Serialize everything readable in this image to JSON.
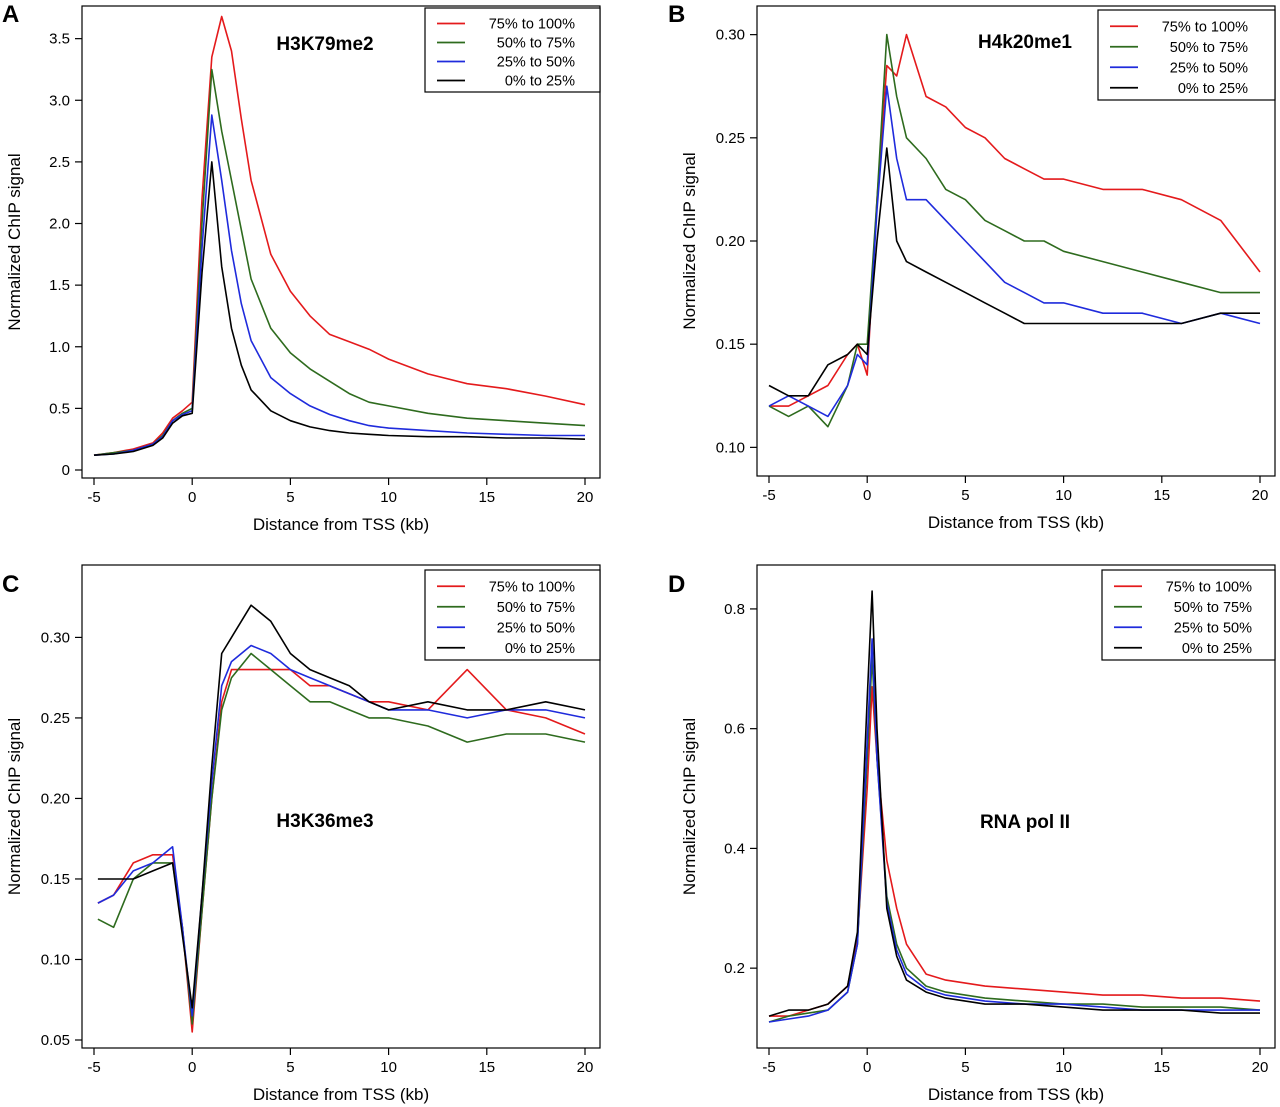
{
  "figure": {
    "description_free": true
  },
  "chart_data": [
    {
      "panel_label": "A",
      "type": "line",
      "title": "H3K79me2",
      "xlabel": "Distance from TSS (kb)",
      "ylabel": "Normalized ChIP signal",
      "xlim": [
        -5,
        20
      ],
      "ylim": [
        0,
        3.7
      ],
      "xticks": [
        -5,
        0,
        5,
        10,
        15,
        20
      ],
      "xtick_labels": [
        "-5",
        "0",
        "5",
        "10",
        "15",
        "20"
      ],
      "yticks": [
        0,
        0.5,
        1,
        1.5,
        2,
        2.5,
        3,
        3.5
      ],
      "ytick_labels": [
        "0",
        "0.5",
        "1.0",
        "1.5",
        "2.0",
        "2.5",
        "3.0",
        "3.5"
      ],
      "legend_position": "top-right",
      "legend": [
        "75% to 100%",
        "50% to 75%",
        "25% to 50%",
        "0% to 25%"
      ],
      "colors": [
        "#e41a1c",
        "#2e6b1e",
        "#1f2bdc",
        "#000000"
      ],
      "series_x": [
        -5,
        -4,
        -3,
        -2,
        -1.5,
        -1,
        -0.5,
        0,
        0.5,
        1,
        1.5,
        2,
        2.5,
        3,
        4,
        5,
        6,
        7,
        8,
        9,
        10,
        12,
        14,
        16,
        18,
        20
      ],
      "series": [
        {
          "name": "75% to 100%",
          "values": [
            0.12,
            0.14,
            0.17,
            0.22,
            0.3,
            0.42,
            0.48,
            0.55,
            2.2,
            3.35,
            3.68,
            3.4,
            2.85,
            2.35,
            1.75,
            1.45,
            1.25,
            1.1,
            1.04,
            0.98,
            0.9,
            0.78,
            0.7,
            0.66,
            0.6,
            0.53
          ]
        },
        {
          "name": "50% to 75%",
          "values": [
            0.12,
            0.14,
            0.16,
            0.21,
            0.28,
            0.4,
            0.46,
            0.5,
            2.0,
            3.25,
            2.75,
            2.35,
            1.95,
            1.55,
            1.15,
            0.95,
            0.82,
            0.72,
            0.62,
            0.55,
            0.52,
            0.46,
            0.42,
            0.4,
            0.38,
            0.36
          ]
        },
        {
          "name": "25% to 50%",
          "values": [
            0.12,
            0.13,
            0.16,
            0.21,
            0.27,
            0.4,
            0.45,
            0.48,
            1.8,
            2.88,
            2.35,
            1.78,
            1.35,
            1.05,
            0.75,
            0.62,
            0.52,
            0.45,
            0.4,
            0.36,
            0.34,
            0.32,
            0.3,
            0.29,
            0.28,
            0.28
          ]
        },
        {
          "name": "0% to 25%",
          "values": [
            0.12,
            0.13,
            0.15,
            0.2,
            0.26,
            0.38,
            0.44,
            0.46,
            1.6,
            2.5,
            1.65,
            1.15,
            0.85,
            0.65,
            0.48,
            0.4,
            0.35,
            0.32,
            0.3,
            0.29,
            0.28,
            0.27,
            0.27,
            0.26,
            0.26,
            0.25
          ]
        }
      ]
    },
    {
      "panel_label": "B",
      "type": "line",
      "title": "H4k20me1",
      "xlabel": "Distance from TSS (kb)",
      "ylabel": "Normalized ChIP signal",
      "xlim": [
        -5,
        20
      ],
      "ylim": [
        0.09,
        0.31
      ],
      "xticks": [
        -5,
        0,
        5,
        10,
        15,
        20
      ],
      "xtick_labels": [
        "-5",
        "0",
        "5",
        "10",
        "15",
        "20"
      ],
      "yticks": [
        0.1,
        0.15,
        0.2,
        0.25,
        0.3
      ],
      "ytick_labels": [
        "0.10",
        "0.15",
        "0.20",
        "0.25",
        "0.30"
      ],
      "legend_position": "top-right",
      "legend": [
        "75% to 100%",
        "50% to 75%",
        "25% to 50%",
        "0% to 25%"
      ],
      "colors": [
        "#e41a1c",
        "#2e6b1e",
        "#1f2bdc",
        "#000000"
      ],
      "series_x": [
        -5,
        -4,
        -3,
        -2,
        -1,
        -0.5,
        0,
        0.5,
        1,
        1.5,
        2,
        3,
        4,
        5,
        6,
        7,
        8,
        9,
        10,
        12,
        14,
        16,
        18,
        20
      ],
      "series": [
        {
          "name": "75% to 100%",
          "values": [
            0.12,
            0.12,
            0.125,
            0.13,
            0.145,
            0.15,
            0.135,
            0.22,
            0.285,
            0.28,
            0.3,
            0.27,
            0.265,
            0.255,
            0.25,
            0.24,
            0.235,
            0.23,
            0.23,
            0.225,
            0.225,
            0.22,
            0.21,
            0.185
          ]
        },
        {
          "name": "50% to 75%",
          "values": [
            0.12,
            0.115,
            0.12,
            0.11,
            0.13,
            0.15,
            0.15,
            0.22,
            0.3,
            0.27,
            0.25,
            0.24,
            0.225,
            0.22,
            0.21,
            0.205,
            0.2,
            0.2,
            0.195,
            0.19,
            0.185,
            0.18,
            0.175,
            0.175
          ]
        },
        {
          "name": "25% to 50%",
          "values": [
            0.12,
            0.125,
            0.12,
            0.115,
            0.13,
            0.145,
            0.14,
            0.215,
            0.275,
            0.24,
            0.22,
            0.22,
            0.21,
            0.2,
            0.19,
            0.18,
            0.175,
            0.17,
            0.17,
            0.165,
            0.165,
            0.16,
            0.165,
            0.16
          ]
        },
        {
          "name": "0% to 25%",
          "values": [
            0.13,
            0.125,
            0.125,
            0.14,
            0.145,
            0.15,
            0.145,
            0.2,
            0.245,
            0.2,
            0.19,
            0.185,
            0.18,
            0.175,
            0.17,
            0.165,
            0.16,
            0.16,
            0.16,
            0.16,
            0.16,
            0.16,
            0.165,
            0.165
          ]
        }
      ]
    },
    {
      "panel_label": "C",
      "type": "line",
      "title": "H3K36me3",
      "xlabel": "Distance from TSS (kb)",
      "ylabel": "Normalized ChIP signal",
      "xlim": [
        -5,
        20
      ],
      "ylim": [
        0.05,
        0.34
      ],
      "xticks": [
        -5,
        0,
        5,
        10,
        15,
        20
      ],
      "xtick_labels": [
        "-5",
        "0",
        "5",
        "10",
        "15",
        "20"
      ],
      "yticks": [
        0.05,
        0.1,
        0.15,
        0.2,
        0.25,
        0.3
      ],
      "ytick_labels": [
        "0.05",
        "0.10",
        "0.15",
        "0.20",
        "0.25",
        "0.30"
      ],
      "legend_position": "top-right",
      "legend": [
        "75% to 100%",
        "50% to 75%",
        "25% to 50%",
        "0% to 25%"
      ],
      "colors": [
        "#e41a1c",
        "#2e6b1e",
        "#1f2bdc",
        "#000000"
      ],
      "series_x": [
        -4.8,
        -4,
        -3,
        -2,
        -1,
        -0.5,
        0,
        0.5,
        1,
        1.5,
        2,
        3,
        4,
        5,
        6,
        7,
        8,
        9,
        10,
        12,
        14,
        16,
        18,
        20
      ],
      "series": [
        {
          "name": "75% to 100%",
          "values": [
            0.135,
            0.14,
            0.16,
            0.165,
            0.165,
            0.12,
            0.055,
            0.13,
            0.2,
            0.26,
            0.28,
            0.28,
            0.28,
            0.28,
            0.27,
            0.27,
            0.265,
            0.26,
            0.26,
            0.255,
            0.28,
            0.255,
            0.25,
            0.24
          ]
        },
        {
          "name": "50% to 75%",
          "values": [
            0.125,
            0.12,
            0.15,
            0.16,
            0.16,
            0.12,
            0.06,
            0.13,
            0.2,
            0.255,
            0.275,
            0.29,
            0.28,
            0.27,
            0.26,
            0.26,
            0.255,
            0.25,
            0.25,
            0.245,
            0.235,
            0.24,
            0.24,
            0.235
          ]
        },
        {
          "name": "25% to 50%",
          "values": [
            0.135,
            0.14,
            0.155,
            0.16,
            0.17,
            0.12,
            0.065,
            0.14,
            0.21,
            0.27,
            0.285,
            0.295,
            0.29,
            0.28,
            0.275,
            0.27,
            0.265,
            0.26,
            0.255,
            0.255,
            0.25,
            0.255,
            0.255,
            0.25
          ]
        },
        {
          "name": "0% to 25%",
          "values": [
            0.15,
            0.15,
            0.15,
            0.155,
            0.16,
            0.115,
            0.07,
            0.14,
            0.22,
            0.29,
            0.3,
            0.32,
            0.31,
            0.29,
            0.28,
            0.275,
            0.27,
            0.26,
            0.255,
            0.26,
            0.255,
            0.255,
            0.26,
            0.255
          ]
        }
      ]
    },
    {
      "panel_label": "D",
      "type": "line",
      "title": "RNA pol II",
      "xlabel": "Distance from TSS (kb)",
      "ylabel": "Normalized ChIP signal",
      "xlim": [
        -5,
        20
      ],
      "ylim": [
        0.08,
        0.86
      ],
      "xticks": [
        -5,
        0,
        5,
        10,
        15,
        20
      ],
      "xtick_labels": [
        "-5",
        "0",
        "5",
        "10",
        "15",
        "20"
      ],
      "yticks": [
        0.2,
        0.4,
        0.6,
        0.8
      ],
      "ytick_labels": [
        "0.2",
        "0.4",
        "0.6",
        "0.8"
      ],
      "legend_position": "top-right",
      "legend": [
        "75% to 100%",
        "50% to 75%",
        "25% to 50%",
        "0% to 25%"
      ],
      "colors": [
        "#e41a1c",
        "#2e6b1e",
        "#1f2bdc",
        "#000000"
      ],
      "series_x": [
        -5,
        -4,
        -3,
        -2,
        -1,
        -0.5,
        0,
        0.25,
        0.5,
        1,
        1.5,
        2,
        3,
        4,
        5,
        6,
        8,
        10,
        12,
        14,
        16,
        18,
        20
      ],
      "series": [
        {
          "name": "75% to 100%",
          "values": [
            0.12,
            0.12,
            0.13,
            0.14,
            0.17,
            0.25,
            0.5,
            0.67,
            0.55,
            0.38,
            0.3,
            0.24,
            0.19,
            0.18,
            0.175,
            0.17,
            0.165,
            0.16,
            0.155,
            0.155,
            0.15,
            0.15,
            0.145
          ]
        },
        {
          "name": "50% to 75%",
          "values": [
            0.11,
            0.12,
            0.125,
            0.13,
            0.16,
            0.24,
            0.55,
            0.72,
            0.55,
            0.32,
            0.24,
            0.2,
            0.17,
            0.16,
            0.155,
            0.15,
            0.145,
            0.14,
            0.14,
            0.135,
            0.135,
            0.135,
            0.13
          ]
        },
        {
          "name": "25% to 50%",
          "values": [
            0.11,
            0.115,
            0.12,
            0.13,
            0.16,
            0.24,
            0.58,
            0.75,
            0.55,
            0.31,
            0.23,
            0.19,
            0.165,
            0.155,
            0.15,
            0.145,
            0.14,
            0.14,
            0.135,
            0.13,
            0.13,
            0.13,
            0.13
          ]
        },
        {
          "name": "0% to 25%",
          "values": [
            0.12,
            0.13,
            0.13,
            0.14,
            0.17,
            0.26,
            0.65,
            0.83,
            0.6,
            0.3,
            0.22,
            0.18,
            0.16,
            0.15,
            0.145,
            0.14,
            0.14,
            0.135,
            0.13,
            0.13,
            0.13,
            0.125,
            0.125
          ]
        }
      ]
    }
  ]
}
